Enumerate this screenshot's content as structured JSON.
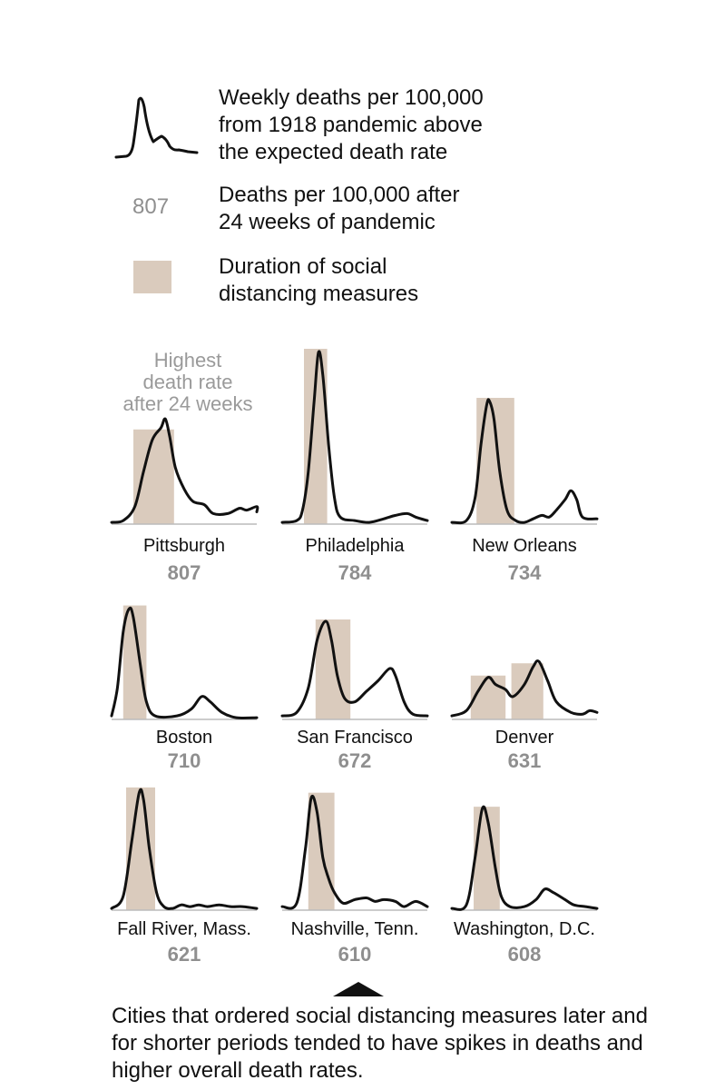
{
  "legend": {
    "line_text": "Weekly deaths per 100,000\nfrom 1918 pandemic above\nthe expected death rate",
    "number_example": "807",
    "number_text": "Deaths per 100,000 after\n24 weeks of pandemic",
    "swatch_text": "Duration of social\ndistancing measures"
  },
  "annotation": "Highest\ndeath rate\nafter 24 weeks",
  "caption": "Cities that ordered social distancing measures later and for shorter periods tended to have spikes in deaths and higher overall death rates.",
  "colors": {
    "line": "#111111",
    "shade": "#dacbbd",
    "number": "#8f8f8f"
  },
  "chart_data": {
    "type": "line",
    "x_description": "",
    "panels": [
      {
        "city": "Pittsburgh",
        "deaths": "807",
        "shade": [
          0.15,
          0.43
        ],
        "shade_top": 0.54,
        "curve": [
          [
            0,
            0.01
          ],
          [
            0.08,
            0.02
          ],
          [
            0.16,
            0.1
          ],
          [
            0.22,
            0.3
          ],
          [
            0.28,
            0.48
          ],
          [
            0.34,
            0.55
          ],
          [
            0.37,
            0.6
          ],
          [
            0.4,
            0.5
          ],
          [
            0.44,
            0.32
          ],
          [
            0.5,
            0.2
          ],
          [
            0.56,
            0.13
          ],
          [
            0.64,
            0.11
          ],
          [
            0.7,
            0.06
          ],
          [
            0.8,
            0.06
          ],
          [
            0.88,
            0.09
          ],
          [
            0.93,
            0.08
          ],
          [
            1,
            0.1
          ],
          [
            1.0,
            0.07
          ]
        ]
      },
      {
        "city": "Philadelphia",
        "deaths": "784",
        "shade": [
          0.15,
          0.31
        ],
        "shade_top": 1.0,
        "curve": [
          [
            0,
            0.01
          ],
          [
            0.1,
            0.02
          ],
          [
            0.14,
            0.08
          ],
          [
            0.18,
            0.3
          ],
          [
            0.22,
            0.7
          ],
          [
            0.25,
            0.98
          ],
          [
            0.28,
            0.85
          ],
          [
            0.32,
            0.45
          ],
          [
            0.36,
            0.15
          ],
          [
            0.4,
            0.04
          ],
          [
            0.5,
            0.02
          ],
          [
            0.6,
            0.01
          ],
          [
            0.7,
            0.03
          ],
          [
            0.78,
            0.05
          ],
          [
            0.86,
            0.06
          ],
          [
            0.92,
            0.04
          ],
          [
            1,
            0.02
          ]
        ]
      },
      {
        "city": "New Orleans",
        "deaths": "734",
        "shade": [
          0.17,
          0.43
        ],
        "shade_top": 0.72,
        "curve": [
          [
            0,
            0.01
          ],
          [
            0.1,
            0.02
          ],
          [
            0.16,
            0.15
          ],
          [
            0.2,
            0.45
          ],
          [
            0.24,
            0.68
          ],
          [
            0.26,
            0.7
          ],
          [
            0.29,
            0.6
          ],
          [
            0.33,
            0.3
          ],
          [
            0.38,
            0.08
          ],
          [
            0.44,
            0.02
          ],
          [
            0.5,
            0.01
          ],
          [
            0.56,
            0.03
          ],
          [
            0.62,
            0.05
          ],
          [
            0.67,
            0.04
          ],
          [
            0.72,
            0.08
          ],
          [
            0.78,
            0.14
          ],
          [
            0.82,
            0.19
          ],
          [
            0.86,
            0.14
          ],
          [
            0.9,
            0.04
          ],
          [
            1,
            0.03
          ]
        ]
      }
    ],
    "panels_row2": [
      {
        "city": "Boston",
        "deaths": "710",
        "shade": [
          0.08,
          0.24
        ],
        "shade_top": 0.65,
        "curve": [
          [
            0,
            0.02
          ],
          [
            0.04,
            0.18
          ],
          [
            0.08,
            0.5
          ],
          [
            0.12,
            0.63
          ],
          [
            0.15,
            0.58
          ],
          [
            0.2,
            0.3
          ],
          [
            0.24,
            0.1
          ],
          [
            0.3,
            0.02
          ],
          [
            0.45,
            0.02
          ],
          [
            0.55,
            0.06
          ],
          [
            0.62,
            0.13
          ],
          [
            0.68,
            0.1
          ],
          [
            0.76,
            0.04
          ],
          [
            0.86,
            0.01
          ],
          [
            1,
            0.01
          ]
        ]
      },
      {
        "city": "San Francisco",
        "deaths": "672",
        "shade": [
          0.23,
          0.47
        ],
        "shade_top": 0.57,
        "curve": [
          [
            0,
            0.02
          ],
          [
            0.1,
            0.04
          ],
          [
            0.18,
            0.18
          ],
          [
            0.24,
            0.45
          ],
          [
            0.3,
            0.56
          ],
          [
            0.34,
            0.45
          ],
          [
            0.38,
            0.25
          ],
          [
            0.43,
            0.12
          ],
          [
            0.5,
            0.1
          ],
          [
            0.58,
            0.16
          ],
          [
            0.66,
            0.22
          ],
          [
            0.74,
            0.29
          ],
          [
            0.78,
            0.25
          ],
          [
            0.84,
            0.1
          ],
          [
            0.9,
            0.03
          ],
          [
            1,
            0.02
          ]
        ]
      },
      {
        "city": "Denver",
        "deaths": "631",
        "shade": [
          0.13,
          0.37
        ],
        "shade_top": 0.25,
        "shade2": [
          0.41,
          0.63
        ],
        "shade2_top": 0.32,
        "curve": [
          [
            0,
            0.02
          ],
          [
            0.1,
            0.05
          ],
          [
            0.18,
            0.16
          ],
          [
            0.25,
            0.24
          ],
          [
            0.3,
            0.2
          ],
          [
            0.37,
            0.17
          ],
          [
            0.42,
            0.13
          ],
          [
            0.5,
            0.2
          ],
          [
            0.56,
            0.3
          ],
          [
            0.6,
            0.33
          ],
          [
            0.66,
            0.22
          ],
          [
            0.72,
            0.1
          ],
          [
            0.82,
            0.04
          ],
          [
            0.9,
            0.03
          ],
          [
            0.95,
            0.05
          ],
          [
            1,
            0.04
          ]
        ]
      }
    ],
    "panels_row3": [
      {
        "city": "Fall River, Mass.",
        "deaths": "621",
        "shade": [
          0.1,
          0.3
        ],
        "shade_top": 0.7,
        "curve": [
          [
            0,
            0.01
          ],
          [
            0.08,
            0.08
          ],
          [
            0.14,
            0.4
          ],
          [
            0.19,
            0.67
          ],
          [
            0.22,
            0.63
          ],
          [
            0.26,
            0.35
          ],
          [
            0.31,
            0.1
          ],
          [
            0.36,
            0.02
          ],
          [
            0.42,
            0.01
          ],
          [
            0.48,
            0.03
          ],
          [
            0.54,
            0.02
          ],
          [
            0.6,
            0.03
          ],
          [
            0.66,
            0.02
          ],
          [
            0.74,
            0.03
          ],
          [
            0.82,
            0.02
          ],
          [
            0.9,
            0.02
          ],
          [
            1,
            0.01
          ]
        ]
      },
      {
        "city": "Nashville, Tenn.",
        "deaths": "610",
        "shade": [
          0.18,
          0.36
        ],
        "shade_top": 0.67,
        "curve": [
          [
            0,
            0.02
          ],
          [
            0.1,
            0.04
          ],
          [
            0.16,
            0.35
          ],
          [
            0.2,
            0.64
          ],
          [
            0.24,
            0.56
          ],
          [
            0.28,
            0.3
          ],
          [
            0.32,
            0.18
          ],
          [
            0.36,
            0.1
          ],
          [
            0.42,
            0.04
          ],
          [
            0.5,
            0.06
          ],
          [
            0.58,
            0.07
          ],
          [
            0.64,
            0.05
          ],
          [
            0.7,
            0.06
          ],
          [
            0.78,
            0.05
          ],
          [
            0.84,
            0.02
          ],
          [
            0.92,
            0.05
          ],
          [
            1,
            0.02
          ]
        ]
      },
      {
        "city": "Washington, D.C.",
        "deaths": "608",
        "shade": [
          0.15,
          0.33
        ],
        "shade_top": 0.59,
        "curve": [
          [
            0,
            0.01
          ],
          [
            0.1,
            0.03
          ],
          [
            0.16,
            0.3
          ],
          [
            0.21,
            0.58
          ],
          [
            0.25,
            0.5
          ],
          [
            0.3,
            0.24
          ],
          [
            0.34,
            0.08
          ],
          [
            0.4,
            0.02
          ],
          [
            0.5,
            0.02
          ],
          [
            0.58,
            0.06
          ],
          [
            0.64,
            0.12
          ],
          [
            0.7,
            0.1
          ],
          [
            0.78,
            0.06
          ],
          [
            0.84,
            0.03
          ],
          [
            0.92,
            0.02
          ],
          [
            1,
            0.01
          ]
        ]
      }
    ]
  }
}
